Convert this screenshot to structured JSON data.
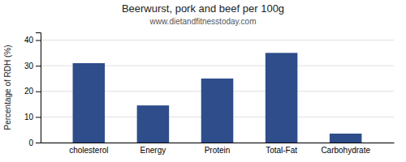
{
  "chart_data": {
    "type": "bar",
    "title": "Beerwurst, pork and beef per 100g",
    "subtitle": "www.dietandfitnesstoday.com",
    "categories": [
      "cholesterol",
      "Energy",
      "Protein",
      "Total-Fat",
      "Carbohydrate"
    ],
    "values": [
      31,
      14.5,
      25,
      35,
      3.5
    ],
    "color": "#2e4d8a",
    "ylabel": "Percentage of RDH (%)",
    "ylim": [
      0,
      43
    ],
    "yticks": [
      0,
      10,
      20,
      30,
      40
    ],
    "grid": true
  }
}
